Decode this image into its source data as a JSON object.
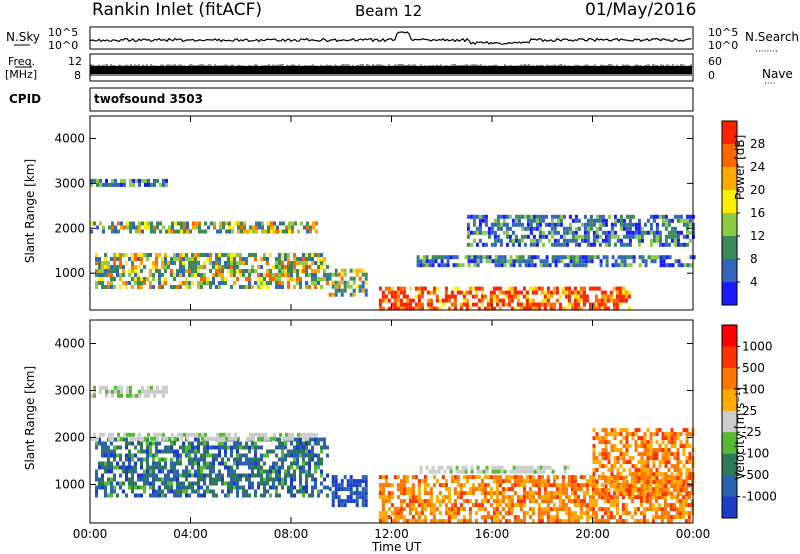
{
  "header": {
    "station": "Rankin Inlet (fitACF)",
    "beam": "Beam 12",
    "date": "01/May/2016"
  },
  "strip_labels": {
    "nsky": "N.Sky",
    "nsearch": "N.Search",
    "freq_line1": "Freq.",
    "freq_line2": "[MHz]",
    "nave": "Nave",
    "cpid": "CPID",
    "cpid_value": "twofsound 3503",
    "log_high": "10^5",
    "log_low": "10^0",
    "freq_high": "12",
    "freq_low": "8",
    "nave_high": "60",
    "nave_low": "0"
  },
  "chart_data": [
    {
      "type": "heatmap",
      "name": "power-panel",
      "title": "",
      "xlabel": "",
      "ylabel": "Slant Range [km]",
      "x_ticks": [
        "00:00",
        "04:00",
        "08:00",
        "12:00",
        "16:00",
        "20:00",
        "00:00"
      ],
      "xlim_hours": [
        0,
        24
      ],
      "ylim_km": [
        180,
        4500
      ],
      "y_ticks": [
        1000,
        2000,
        3000,
        4000
      ],
      "colorbar": {
        "label": "Power [dB]",
        "ticks": [
          "4",
          "8",
          "12",
          "16",
          "20",
          "24",
          "28"
        ],
        "colors": [
          "#1a1aff",
          "#3366bb",
          "#3a8a5a",
          "#8ccc44",
          "#ffee00",
          "#ffaa00",
          "#ff6600",
          "#ff2200"
        ]
      },
      "regions": [
        {
          "t": [
            0.2,
            9.5
          ],
          "r": [
            700,
            1450
          ],
          "level": "mid"
        },
        {
          "t": [
            9.5,
            11.0
          ],
          "r": [
            500,
            1100
          ],
          "level": "mid"
        },
        {
          "t": [
            11.5,
            21.5
          ],
          "r": [
            250,
            700
          ],
          "level": "high"
        },
        {
          "t": [
            0.0,
            9.0
          ],
          "r": [
            1950,
            2150
          ],
          "level": "mid"
        },
        {
          "t": [
            0.0,
            3.0
          ],
          "r": [
            2950,
            3100
          ],
          "level": "low"
        },
        {
          "t": [
            13.0,
            24.0
          ],
          "r": [
            1200,
            1400
          ],
          "level": "low"
        },
        {
          "t": [
            15.0,
            24.0
          ],
          "r": [
            1600,
            2300
          ],
          "level": "low"
        }
      ]
    },
    {
      "type": "heatmap",
      "name": "velocity-panel",
      "title": "",
      "xlabel": "Time UT",
      "ylabel": "Slant Range [km]",
      "x_ticks": [
        "00:00",
        "04:00",
        "08:00",
        "12:00",
        "16:00",
        "20:00",
        "00:00"
      ],
      "xlim_hours": [
        0,
        24
      ],
      "ylim_km": [
        180,
        4500
      ],
      "y_ticks": [
        1000,
        2000,
        3000,
        4000
      ],
      "colorbar": {
        "label": "Velocity [m s⁻¹]",
        "ticks": [
          "1000",
          "500",
          "100",
          "25",
          "-25",
          "-100",
          "-500",
          "-1000"
        ],
        "colors": [
          "#1a3cc8",
          "#2a62b0",
          "#2f7a55",
          "#55bb33",
          "#cccccc",
          "#ffaa00",
          "#ff7700",
          "#ff3300",
          "#ff0000"
        ]
      },
      "regions": [
        {
          "t": [
            0.2,
            9.5
          ],
          "r": [
            800,
            2000
          ],
          "level": "pos"
        },
        {
          "t": [
            9.5,
            11.0
          ],
          "r": [
            600,
            1200
          ],
          "level": "pos-high"
        },
        {
          "t": [
            11.5,
            24.0
          ],
          "r": [
            200,
            1200
          ],
          "level": "neg"
        },
        {
          "t": [
            20.0,
            24.0
          ],
          "r": [
            800,
            2200
          ],
          "level": "neg"
        },
        {
          "t": [
            0.0,
            9.0
          ],
          "r": [
            1950,
            2100
          ],
          "level": "zero"
        },
        {
          "t": [
            0.0,
            3.0
          ],
          "r": [
            2900,
            3100
          ],
          "level": "zero"
        },
        {
          "t": [
            13.0,
            19.0
          ],
          "r": [
            1250,
            1400
          ],
          "level": "zero"
        }
      ]
    }
  ]
}
